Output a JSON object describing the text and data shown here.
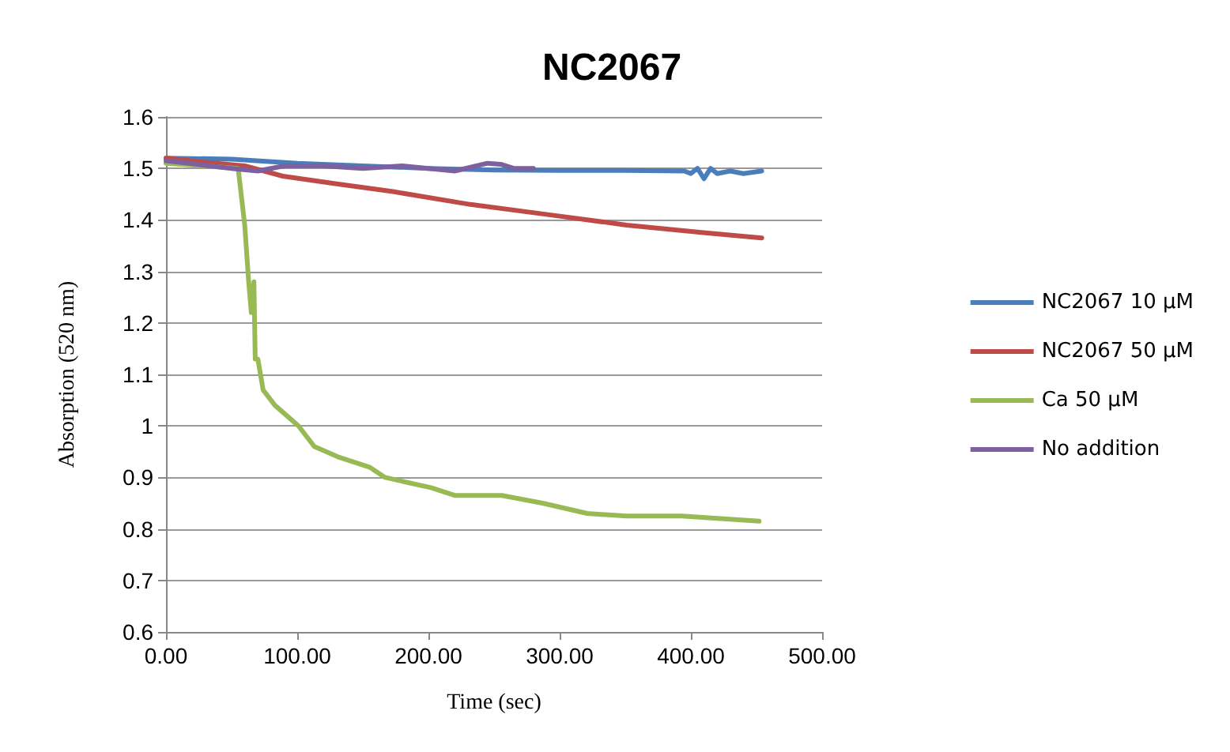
{
  "chart_data": {
    "type": "line",
    "title": "NC2067",
    "xlabel": "Time (sec)",
    "ylabel": "Absorption (520 nm)",
    "xlim": [
      0,
      500
    ],
    "xticks": [
      {
        "value": 0,
        "label": "0.00"
      },
      {
        "value": 100,
        "label": "100.00"
      },
      {
        "value": 200,
        "label": "200.00"
      },
      {
        "value": 300,
        "label": "300.00"
      },
      {
        "value": 400,
        "label": "400.00"
      },
      {
        "value": 500,
        "label": "500.00"
      }
    ],
    "ylim": [
      0.6,
      1.6
    ],
    "yticks": [
      0.6,
      0.7,
      0.8,
      0.9,
      1,
      1.1,
      1.2,
      1.3,
      1.4,
      1.5,
      1.6
    ],
    "grid": "y",
    "legend": "right",
    "marker": "none",
    "line_style": "solid",
    "series": [
      {
        "name": "NC2067 10 μM",
        "color": "#4a7ebb",
        "x": [
          0,
          50,
          100,
          150,
          200,
          250,
          300,
          350,
          395,
          400,
          405,
          410,
          415,
          420,
          430,
          440,
          454
        ],
        "values": [
          1.52,
          1.518,
          1.51,
          1.505,
          1.5,
          1.497,
          1.496,
          1.496,
          1.495,
          1.49,
          1.5,
          1.48,
          1.5,
          1.49,
          1.495,
          1.49,
          1.495
        ]
      },
      {
        "name": "NC2067 50 μM",
        "color": "#be4b48",
        "x": [
          0,
          30,
          60,
          89,
          130,
          173,
          232,
          292,
          351,
          411,
          454
        ],
        "values": [
          1.52,
          1.512,
          1.505,
          1.485,
          1.47,
          1.455,
          1.43,
          1.41,
          1.39,
          1.375,
          1.365
        ]
      },
      {
        "name": "Ca 50 μM",
        "color": "#98b954",
        "x": [
          0,
          30,
          55,
          60,
          63,
          65,
          67,
          68,
          70,
          74,
          83,
          101,
          113,
          131,
          155,
          167,
          202,
          220,
          256,
          287,
          321,
          351,
          393,
          452
        ],
        "values": [
          1.51,
          1.505,
          1.5,
          1.39,
          1.28,
          1.22,
          1.28,
          1.13,
          1.13,
          1.07,
          1.04,
          1.0,
          0.96,
          0.94,
          0.92,
          0.9,
          0.88,
          0.865,
          0.865,
          0.85,
          0.83,
          0.825,
          0.825,
          0.815
        ]
      },
      {
        "name": "No addition",
        "color": "#7d60a0",
        "x": [
          0,
          50,
          70,
          90,
          120,
          150,
          180,
          200,
          220,
          245,
          255,
          265,
          280
        ],
        "values": [
          1.515,
          1.5,
          1.495,
          1.505,
          1.505,
          1.5,
          1.505,
          1.5,
          1.495,
          1.51,
          1.508,
          1.5,
          1.5
        ]
      }
    ]
  }
}
